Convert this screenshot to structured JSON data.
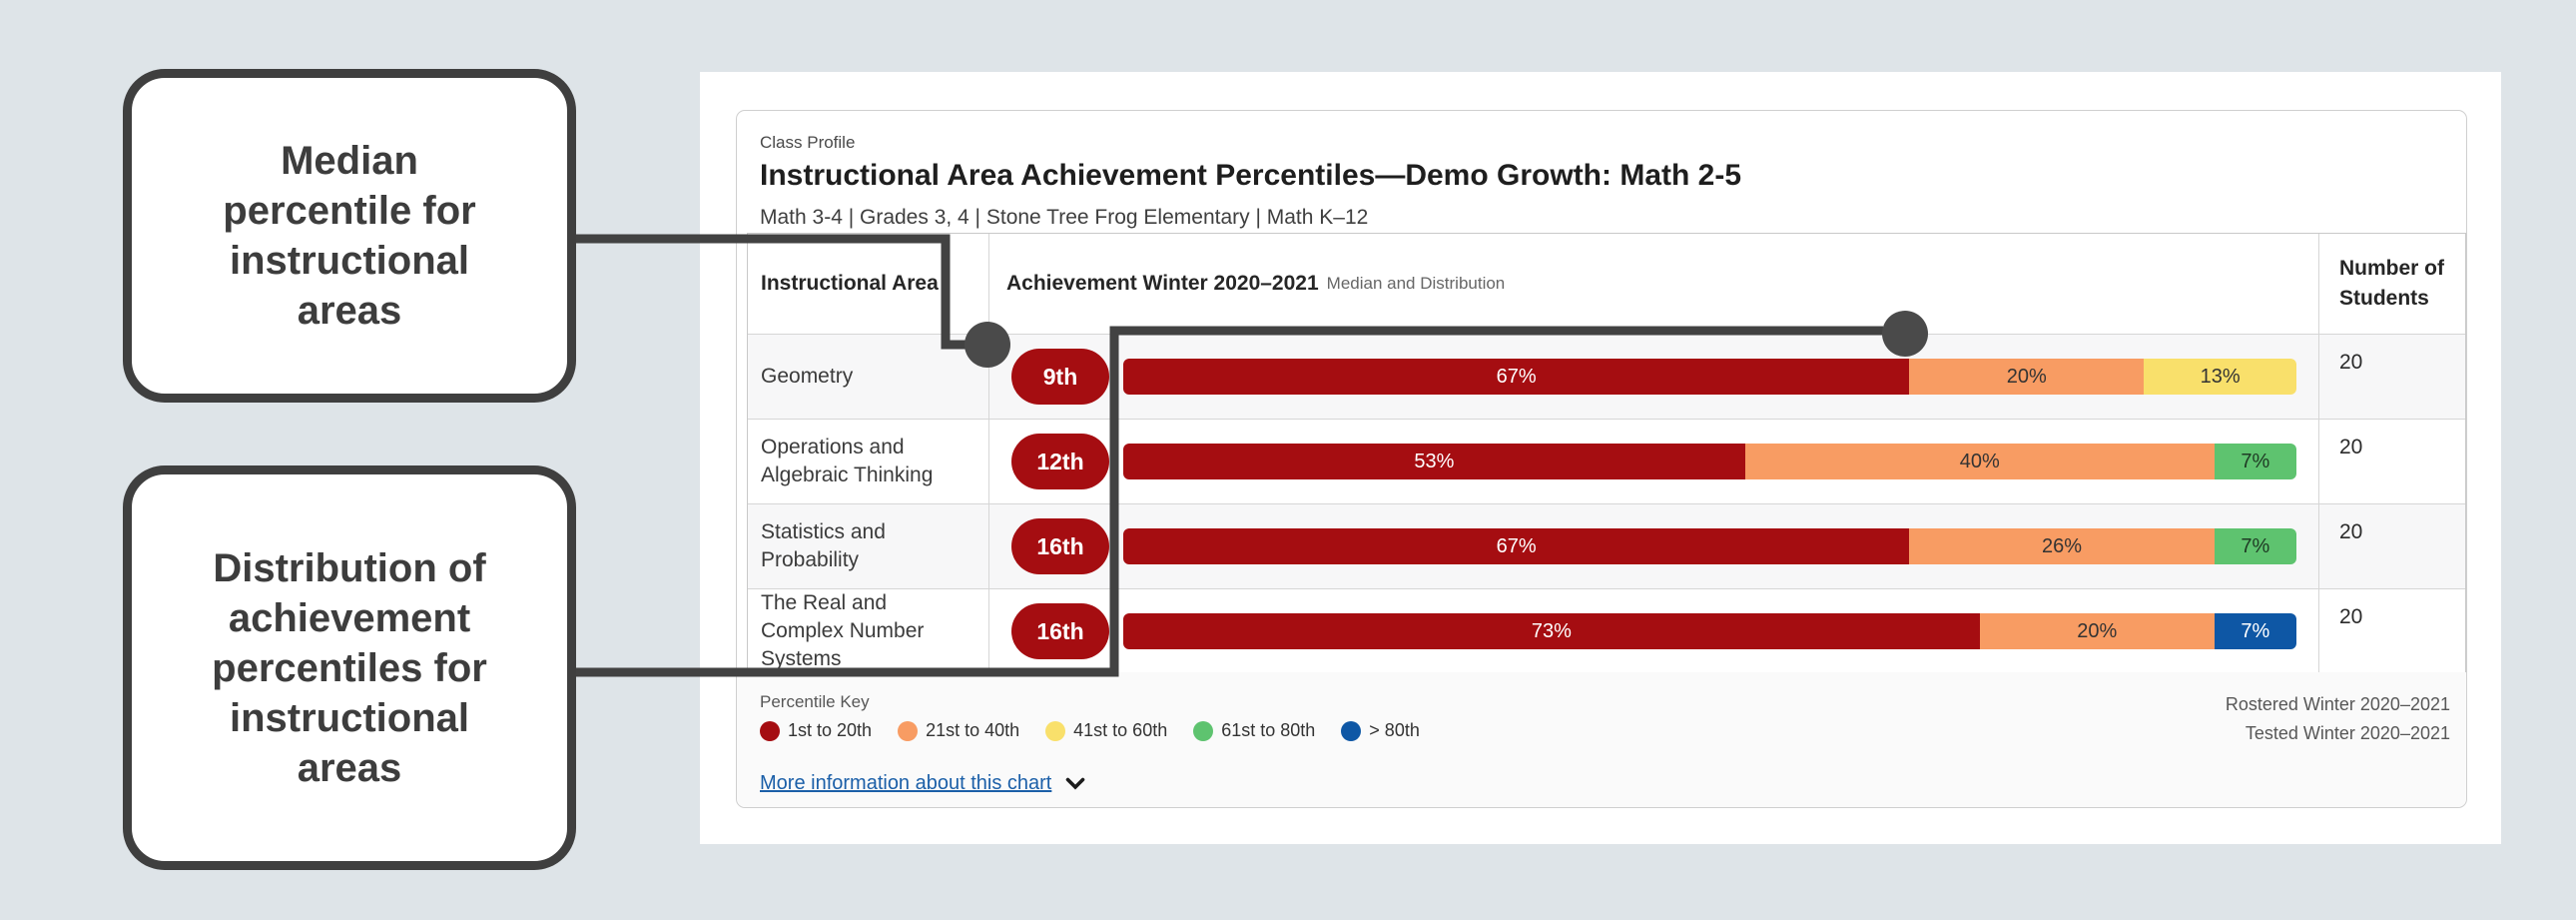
{
  "callouts": {
    "median_note": "Median\npercentile for\ninstructional\nareas",
    "distribution_note": "Distribution of\nachievement\npercentiles for\ninstructional\nareas"
  },
  "card": {
    "eyebrow": "Class Profile",
    "title": "Instructional Area Achievement Percentiles—Demo Growth: Math 2-5",
    "subtitle": "Math 3-4 | Grades 3, 4 | Stone Tree Frog Elementary | Math K–12",
    "table": {
      "col1_header": "Instructional Area",
      "col2_header": "Achievement Winter 2020–2021",
      "col2_header_sub": "Median and Distribution",
      "col3_header": "Number of Students"
    },
    "footer": {
      "legend_title": "Percentile Key",
      "legend": [
        {
          "label": "1st to 20th",
          "color": "#a50d11"
        },
        {
          "label": "21st to 40th",
          "color": "#f89c63"
        },
        {
          "label": "41st to 60th",
          "color": "#f9e06b"
        },
        {
          "label": "61st to 80th",
          "color": "#5ec36f"
        },
        {
          "label": "> 80th",
          "color": "#0e57a5"
        }
      ],
      "rostered": "Rostered Winter 2020–2021",
      "tested": "Tested Winter 2020–2021",
      "more_info_link": "More information about this chart"
    }
  },
  "chart_data": {
    "type": "bar",
    "stacked": true,
    "orientation": "horizontal",
    "unit": "percent of students",
    "title": "Achievement Winter 2020–2021 Median and Distribution",
    "categories": [
      "Geometry",
      "Operations and Algebraic Thinking",
      "Statistics and Probability",
      "The Real and Complex Number Systems"
    ],
    "medians": [
      "9th",
      "12th",
      "16th",
      "16th"
    ],
    "students": [
      20,
      20,
      20,
      20
    ],
    "series": [
      {
        "name": "1st to 20th",
        "color": "#a50d11",
        "values": [
          67,
          53,
          67,
          73
        ]
      },
      {
        "name": "21st to 40th",
        "color": "#f89c63",
        "values": [
          20,
          40,
          26,
          20
        ]
      },
      {
        "name": "41st to 60th",
        "color": "#f9e06b",
        "values": [
          13,
          0,
          0,
          0
        ]
      },
      {
        "name": "61st to 80th",
        "color": "#5ec36f",
        "values": [
          0,
          7,
          7,
          0
        ]
      },
      {
        "name": "> 80th",
        "color": "#0e57a5",
        "values": [
          0,
          0,
          0,
          7
        ]
      }
    ],
    "rows": [
      {
        "area": "Geometry",
        "median": "9th",
        "students": "20",
        "segments": [
          {
            "value": 67,
            "label": "67%",
            "band": "1st to 20th",
            "color": "#a50d11",
            "text_color": "#ffffff"
          },
          {
            "value": 20,
            "label": "20%",
            "band": "21st to 40th",
            "color": "#f89c63",
            "text_color": "#333333"
          },
          {
            "value": 13,
            "label": "13%",
            "band": "41st to 60th",
            "color": "#f9e06b",
            "text_color": "#333333"
          }
        ]
      },
      {
        "area": "Operations and Algebraic Thinking",
        "median": "12th",
        "students": "20",
        "segments": [
          {
            "value": 53,
            "label": "53%",
            "band": "1st to 20th",
            "color": "#a50d11",
            "text_color": "#ffffff"
          },
          {
            "value": 40,
            "label": "40%",
            "band": "21st to 40th",
            "color": "#f89c63",
            "text_color": "#333333"
          },
          {
            "value": 7,
            "label": "7%",
            "band": "61st to 80th",
            "color": "#5ec36f",
            "text_color": "#1f3b24"
          }
        ]
      },
      {
        "area": "Statistics and Probability",
        "median": "16th",
        "students": "20",
        "segments": [
          {
            "value": 67,
            "label": "67%",
            "band": "1st to 20th",
            "color": "#a50d11",
            "text_color": "#ffffff"
          },
          {
            "value": 26,
            "label": "26%",
            "band": "21st to 40th",
            "color": "#f89c63",
            "text_color": "#333333"
          },
          {
            "value": 7,
            "label": "7%",
            "band": "61st to 80th",
            "color": "#5ec36f",
            "text_color": "#1f3b24"
          }
        ]
      },
      {
        "area": "The Real and Complex Number Systems",
        "median": "16th",
        "students": "20",
        "segments": [
          {
            "value": 73,
            "label": "73%",
            "band": "1st to 20th",
            "color": "#a50d11",
            "text_color": "#ffffff"
          },
          {
            "value": 20,
            "label": "20%",
            "band": "21st to 40th",
            "color": "#f89c63",
            "text_color": "#333333"
          },
          {
            "value": 7,
            "label": "7%",
            "band": "> 80th",
            "color": "#0e57a5",
            "text_color": "#ffffff"
          }
        ]
      }
    ]
  },
  "colors": {
    "page_background": "#dee4e8",
    "annotation": "#424242",
    "link_blue": "#1b5fa8",
    "median_pill": "#a50d11"
  }
}
